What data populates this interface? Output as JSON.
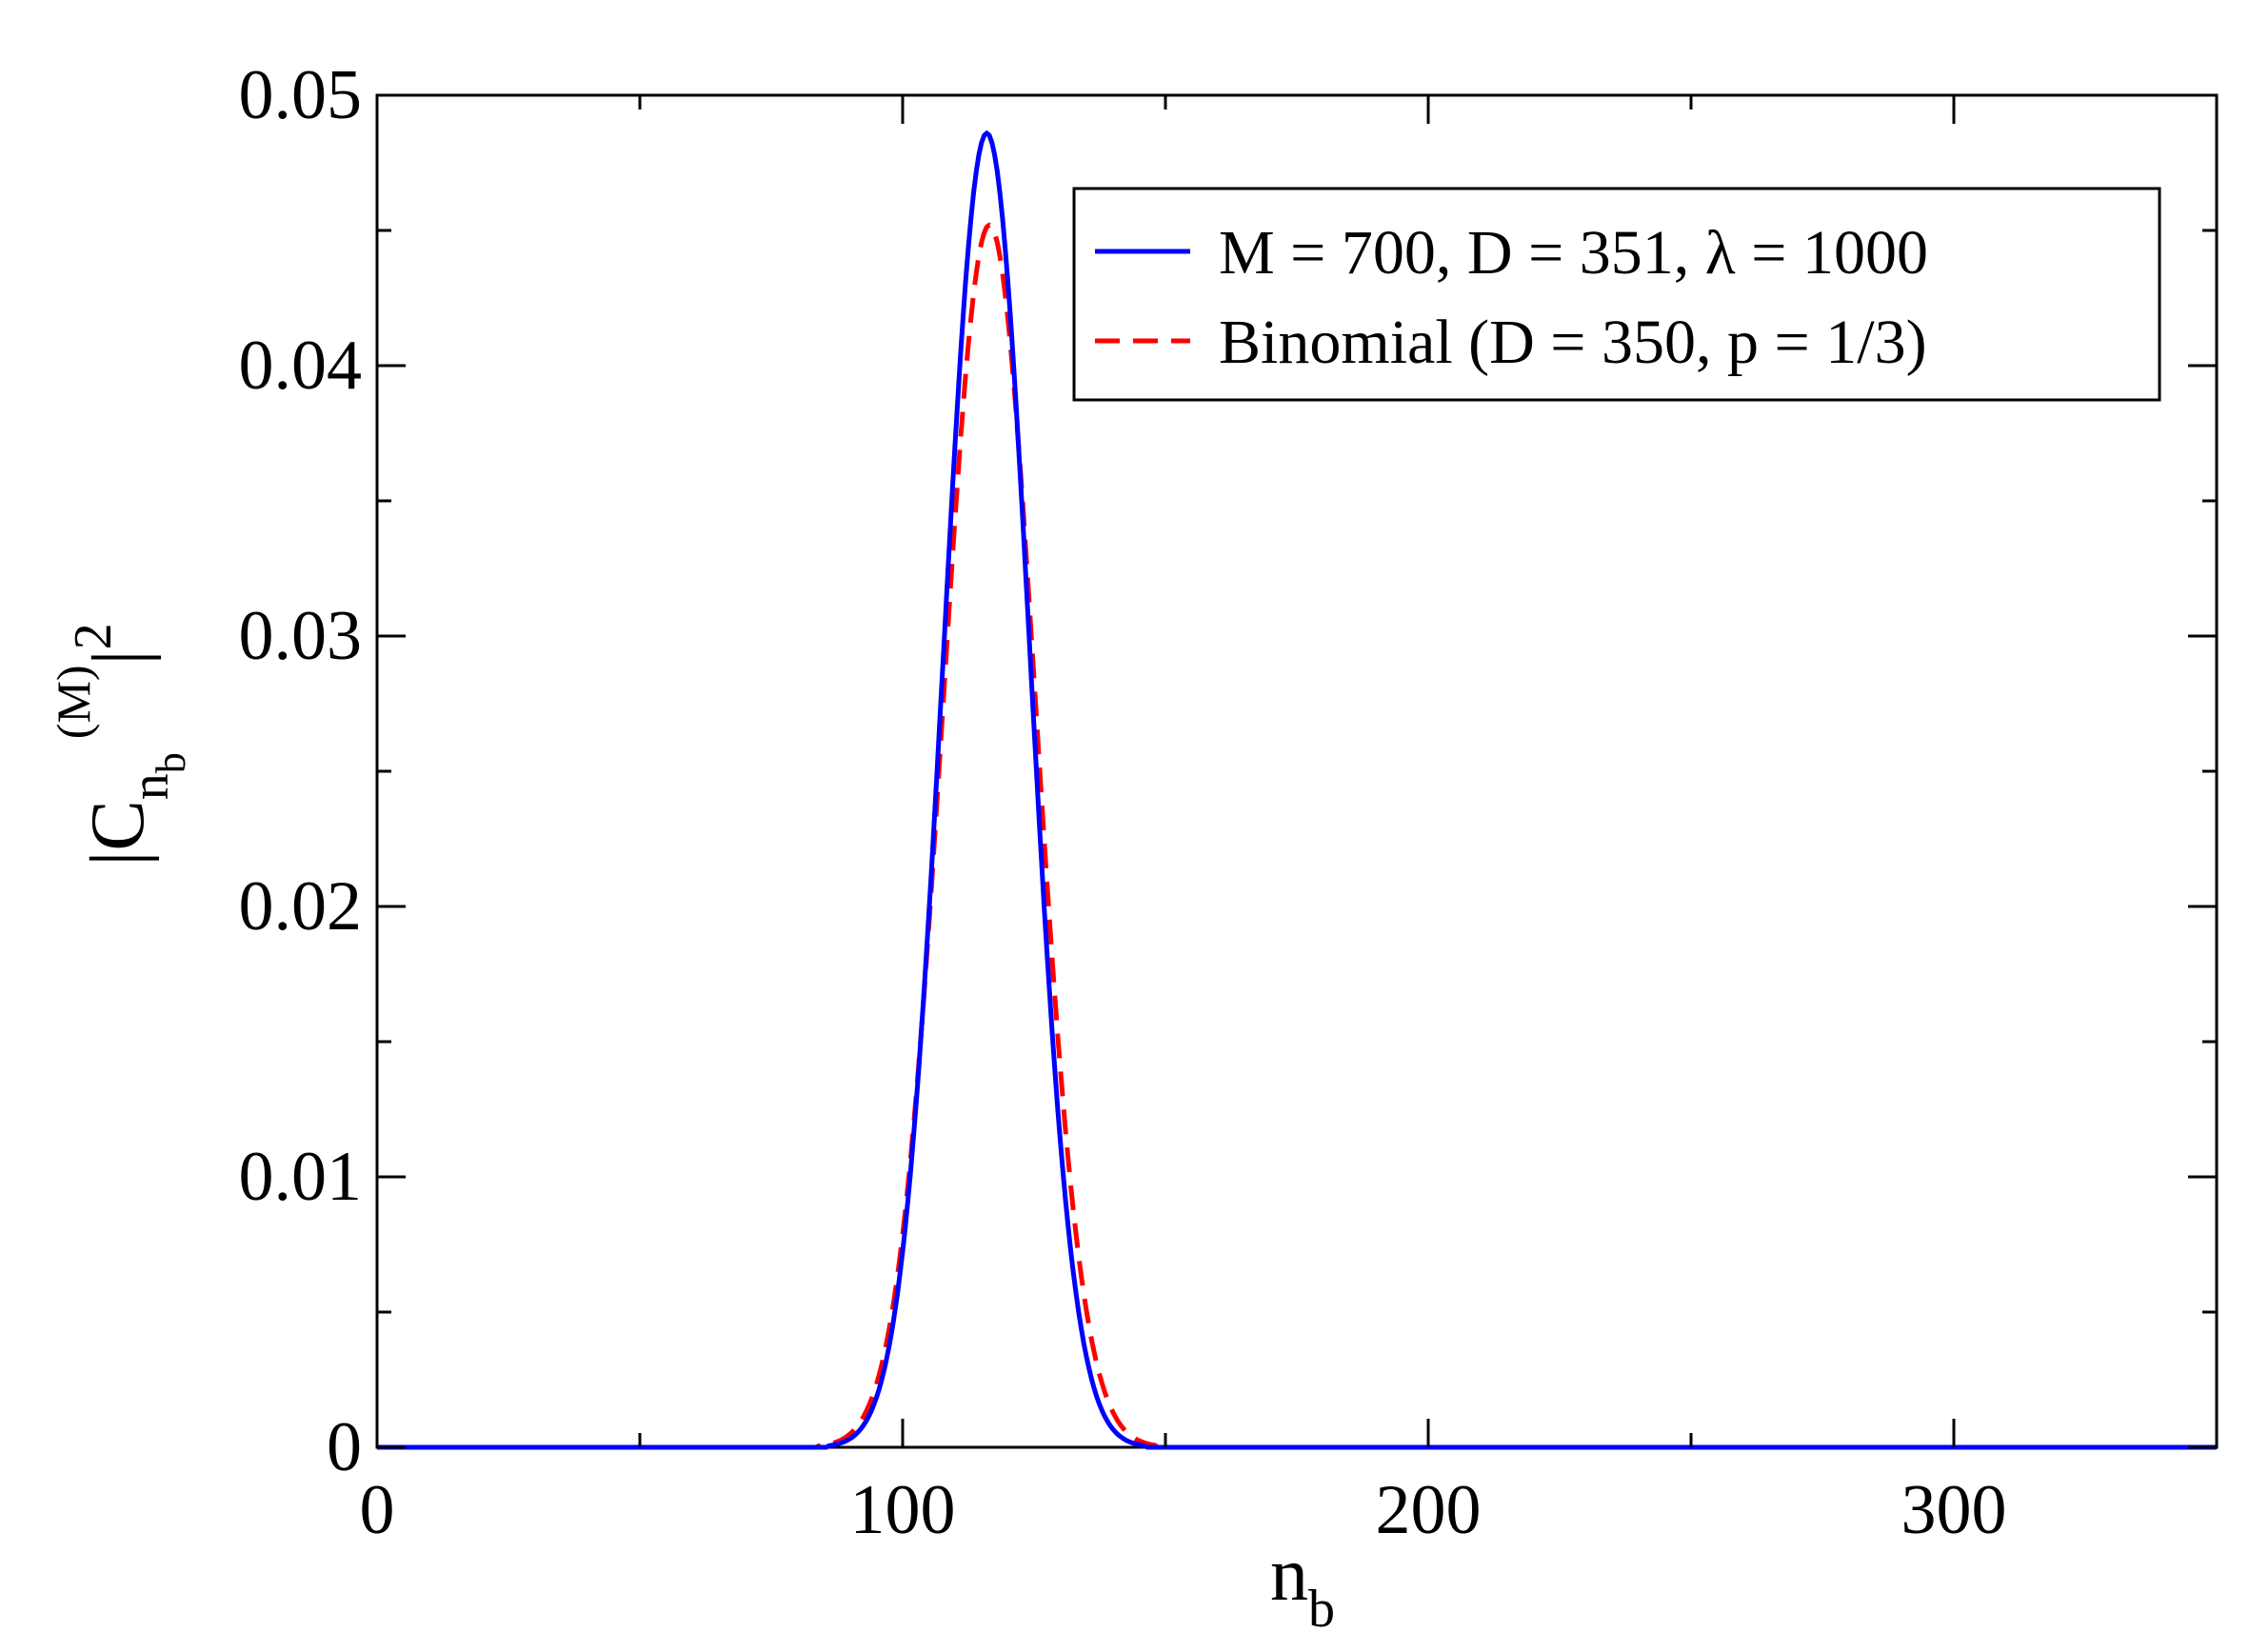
{
  "chart_data": {
    "type": "line",
    "title": "",
    "xlabel": {
      "main": "n",
      "sub": "b"
    },
    "ylabel": {
      "main": "|C",
      "sub1": "n",
      "sub2": "b",
      "sup": "(M)",
      "tail": "|",
      "power": "2"
    },
    "xlim": [
      0,
      350
    ],
    "ylim": [
      0,
      0.05
    ],
    "x_ticks": [
      0,
      100,
      200,
      300
    ],
    "x_tick_labels": [
      "0",
      "100",
      "200",
      "300"
    ],
    "x_minor_step": 50,
    "y_ticks": [
      0,
      0.01,
      0.02,
      0.03,
      0.04,
      0.05
    ],
    "y_tick_labels": [
      "0",
      "0.01",
      "0.02",
      "0.03",
      "0.04",
      "0.05"
    ],
    "y_minor_step": 0.005,
    "grid": false,
    "legend_position": "top-right",
    "series": [
      {
        "name": "M = 700, D = 351, λ = 1000",
        "color": "#0000ff",
        "style": "solid",
        "peak_x": 116,
        "peak_y": 0.0486,
        "sigma": 8.2,
        "support": [
          86,
          146
        ]
      },
      {
        "name": "Binomial (D = 350, p = 1/3)",
        "color": "#ff0000",
        "style": "dashed",
        "peak_x": 116.5,
        "peak_y": 0.0452,
        "sigma": 8.82,
        "support": [
          84,
          148
        ]
      }
    ]
  }
}
